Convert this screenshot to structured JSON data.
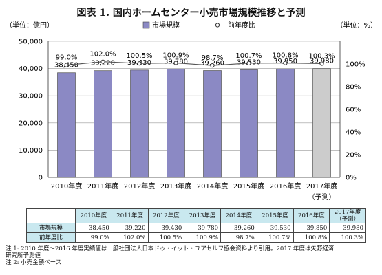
{
  "title": "図表 1. 国内ホームセンター小売市場規模推移と予測",
  "chart_data": {
    "type": "bar",
    "categories": [
      "2010年度",
      "2011年度",
      "2012年度",
      "2013年度",
      "2014年度",
      "2015年度",
      "2016年度",
      "2017年度"
    ],
    "forecast_label": "（予測）",
    "series": [
      {
        "name": "市場規模",
        "type": "bar",
        "axis": "left",
        "values": [
          38450,
          39220,
          39430,
          39780,
          39260,
          39530,
          39850,
          39980
        ],
        "labels": [
          "38,450",
          "39,220",
          "39,430",
          "39,780",
          "39,260",
          "39,530",
          "39,850",
          "39,980"
        ],
        "color": "#8b89c4",
        "forecast_color": "#cccccc"
      },
      {
        "name": "前年度比",
        "type": "line",
        "axis": "right",
        "values": [
          99.0,
          102.0,
          100.5,
          100.9,
          98.7,
          100.7,
          100.8,
          100.3
        ],
        "labels": [
          "99.0%",
          "102.0%",
          "100.5%",
          "100.9%",
          "98.7%",
          "100.7%",
          "100.8%",
          "100.3%"
        ],
        "color": "#555555"
      }
    ],
    "ylabel_left": "（単位：億円）",
    "ylabel_right": "（単位：%）",
    "ylim_left": [
      0,
      50000
    ],
    "ylim_right": [
      0,
      120
    ],
    "yticks_left": [
      "0",
      "10,000",
      "20,000",
      "30,000",
      "40,000",
      "50,000"
    ],
    "yticks_right": [
      "0%",
      "20%",
      "40%",
      "60%",
      "80%",
      "100%"
    ],
    "grid": true,
    "legend": "top-center"
  },
  "table": {
    "headers": [
      "2010年度",
      "2011年度",
      "2012年度",
      "2013年度",
      "2014年度",
      "2015年度",
      "2016年度"
    ],
    "last_header_line1": "2017年度",
    "last_header_line2": "（予測）",
    "rows": [
      {
        "label": "市場規模",
        "cells": [
          "38,450",
          "39,220",
          "39,430",
          "39,780",
          "39,260",
          "39,530",
          "39,850",
          "39,980"
        ]
      },
      {
        "label": "前年度比",
        "cells": [
          "99.0%",
          "102.0%",
          "100.5%",
          "100.9%",
          "98.7%",
          "100.7%",
          "100.8%",
          "100.3%"
        ]
      }
    ]
  },
  "notes": [
    "注 1: 2010 年度～2016 年度実績値は一般社団法人日本ドゥ・イット・ユアセルフ協会資料より引用。2017 年度は矢野経済",
    "研究所予測値",
    "注 2: 小売金額ベース"
  ]
}
